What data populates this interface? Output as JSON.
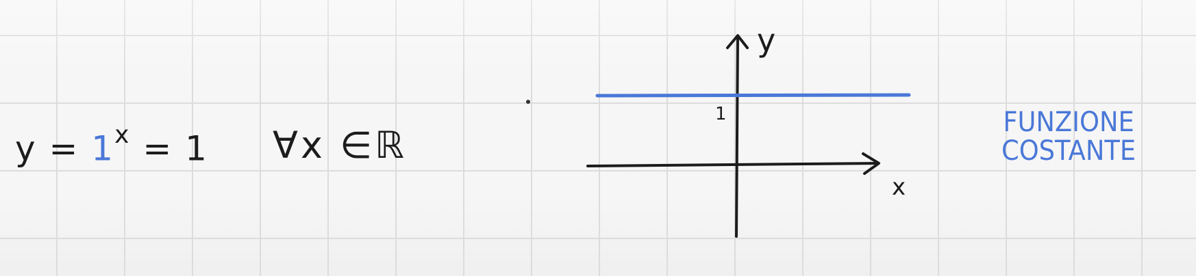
{
  "formula": {
    "lhs": "y =",
    "base": "1",
    "exponent": "x",
    "rhs": "= 1"
  },
  "quantifier": "∀x ∈ℝ",
  "graph": {
    "y_axis_label": "y",
    "x_axis_label": "x",
    "y_tick_label": "1"
  },
  "label": {
    "line1": "FUNZIONE",
    "line2": "COSTANTE"
  },
  "colors": {
    "ink": "#1c1c1c",
    "accent": "#4a78d8"
  }
}
